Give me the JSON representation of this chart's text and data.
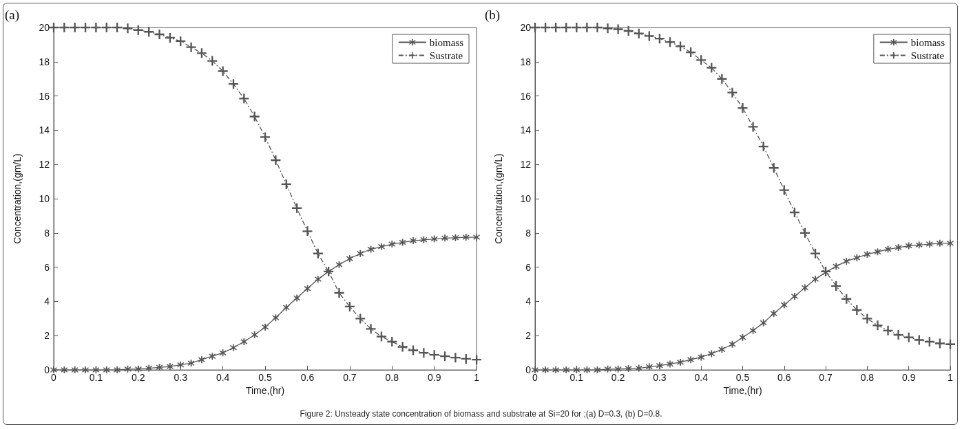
{
  "chart_data": [
    {
      "type": "line",
      "title": "(a)",
      "xlabel": "Time,(hr)",
      "ylabel": "Concentration,(gm/L)",
      "x": [
        0,
        0.025,
        0.05,
        0.075,
        0.1,
        0.125,
        0.15,
        0.175,
        0.2,
        0.225,
        0.25,
        0.275,
        0.3,
        0.325,
        0.35,
        0.375,
        0.4,
        0.425,
        0.45,
        0.475,
        0.5,
        0.525,
        0.55,
        0.575,
        0.6,
        0.625,
        0.65,
        0.675,
        0.7,
        0.725,
        0.75,
        0.775,
        0.8,
        0.825,
        0.85,
        0.875,
        0.9,
        0.925,
        0.95,
        0.975,
        1
      ],
      "series": [
        {
          "name": "biomass",
          "color": "#555555",
          "marker": "star",
          "line_style": "solid",
          "values": [
            0,
            0,
            0,
            0,
            0,
            0,
            0,
            0.05,
            0.05,
            0.1,
            0.15,
            0.2,
            0.3,
            0.4,
            0.6,
            0.8,
            1.0,
            1.3,
            1.65,
            2.05,
            2.5,
            3.05,
            3.65,
            4.2,
            4.75,
            5.3,
            5.75,
            6.15,
            6.5,
            6.8,
            7.05,
            7.2,
            7.35,
            7.45,
            7.55,
            7.6,
            7.65,
            7.7,
            7.72,
            7.75,
            7.75
          ]
        },
        {
          "name": "Sustrate",
          "color": "#555555",
          "marker": "cross",
          "line_style": "dashed",
          "values": [
            20,
            20,
            20,
            20,
            20,
            20,
            20,
            19.95,
            19.85,
            19.75,
            19.6,
            19.4,
            19.2,
            18.85,
            18.5,
            18.05,
            17.45,
            16.7,
            15.85,
            14.8,
            13.6,
            12.25,
            10.85,
            9.45,
            8.1,
            6.8,
            5.75,
            4.5,
            3.7,
            3.0,
            2.4,
            1.95,
            1.65,
            1.35,
            1.15,
            1.0,
            0.88,
            0.8,
            0.72,
            0.65,
            0.6
          ]
        }
      ],
      "xlim": [
        0,
        1
      ],
      "xticks": [
        0,
        0.1,
        0.2,
        0.3,
        0.4,
        0.5,
        0.6,
        0.7,
        0.8,
        0.9,
        1
      ],
      "ylim": [
        0,
        20
      ],
      "yticks": [
        0,
        2,
        4,
        6,
        8,
        10,
        12,
        14,
        16,
        18,
        20
      ],
      "grid": false,
      "legend": "top right",
      "annotations": [
        "Figure 2: Unsteady state concentration of biomass and substrate at Si=20 for ;(a) D=0.3, (b) D=0.8."
      ]
    },
    {
      "type": "line",
      "title": "(b)",
      "xlabel": "Time,(hr)",
      "ylabel": "Concentration,(gm/L)",
      "x": [
        0,
        0.025,
        0.05,
        0.075,
        0.1,
        0.125,
        0.15,
        0.175,
        0.2,
        0.225,
        0.25,
        0.275,
        0.3,
        0.325,
        0.35,
        0.375,
        0.4,
        0.425,
        0.45,
        0.475,
        0.5,
        0.525,
        0.55,
        0.575,
        0.6,
        0.625,
        0.65,
        0.675,
        0.7,
        0.725,
        0.75,
        0.775,
        0.8,
        0.825,
        0.85,
        0.875,
        0.9,
        0.925,
        0.95,
        0.975,
        1
      ],
      "series": [
        {
          "name": "biomass",
          "color": "#555555",
          "marker": "star",
          "line_style": "solid",
          "values": [
            0,
            0,
            0,
            0,
            0,
            0,
            0,
            0.05,
            0.05,
            0.08,
            0.1,
            0.18,
            0.25,
            0.35,
            0.45,
            0.6,
            0.75,
            0.95,
            1.2,
            1.5,
            1.9,
            2.3,
            2.75,
            3.3,
            3.8,
            4.3,
            4.8,
            5.3,
            5.7,
            6.05,
            6.35,
            6.55,
            6.75,
            6.9,
            7.05,
            7.15,
            7.25,
            7.3,
            7.35,
            7.4,
            7.4
          ]
        },
        {
          "name": "Sustrate",
          "color": "#555555",
          "marker": "cross",
          "line_style": "dashed",
          "values": [
            20,
            20,
            20,
            20,
            20,
            20,
            20,
            19.95,
            19.9,
            19.8,
            19.65,
            19.5,
            19.35,
            19.15,
            18.9,
            18.55,
            18.1,
            17.65,
            17.0,
            16.2,
            15.3,
            14.2,
            13.05,
            11.8,
            10.5,
            9.2,
            8.0,
            6.8,
            5.75,
            4.9,
            4.15,
            3.5,
            3.0,
            2.6,
            2.3,
            2.05,
            1.9,
            1.75,
            1.65,
            1.55,
            1.5
          ]
        }
      ],
      "xlim": [
        0,
        1
      ],
      "xticks": [
        0,
        0.1,
        0.2,
        0.3,
        0.4,
        0.5,
        0.6,
        0.7,
        0.8,
        0.9,
        1
      ],
      "ylim": [
        0,
        20
      ],
      "yticks": [
        0,
        2,
        4,
        6,
        8,
        10,
        12,
        14,
        16,
        18,
        20
      ],
      "grid": false,
      "legend": "top right"
    }
  ]
}
